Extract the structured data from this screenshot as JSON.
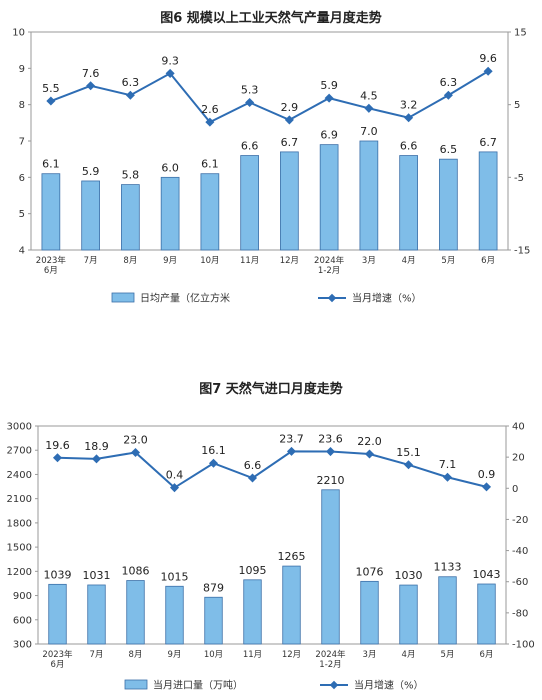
{
  "chart_data": [
    {
      "type": "bar",
      "title": "图6  规模以上工业天然气产量月度走势",
      "categories": [
        [
          "2023年",
          "6月"
        ],
        [
          "7月"
        ],
        [
          "8月"
        ],
        [
          "9月"
        ],
        [
          "10月"
        ],
        [
          "11月"
        ],
        [
          "12月"
        ],
        [
          "2024年",
          "1-2月"
        ],
        [
          "3月"
        ],
        [
          "4月"
        ],
        [
          "5月"
        ],
        [
          "6月"
        ]
      ],
      "series": [
        {
          "name": "日均产量（亿立方米",
          "kind": "bar",
          "axis": "left",
          "values": [
            6.1,
            5.9,
            5.8,
            6.0,
            6.1,
            6.6,
            6.7,
            6.9,
            7.0,
            6.6,
            6.5,
            6.7
          ],
          "color": "#7fbde8"
        },
        {
          "name": "当月增速（%）",
          "kind": "line",
          "axis": "right",
          "values": [
            5.5,
            7.6,
            6.3,
            9.3,
            2.6,
            5.3,
            2.9,
            5.9,
            4.5,
            3.2,
            6.3,
            9.6
          ],
          "color": "#2e6db4"
        }
      ],
      "y_left": {
        "min": 4,
        "max": 10,
        "ticks": [
          4,
          5,
          6,
          7,
          8,
          9,
          10
        ]
      },
      "y_right": {
        "min": -15,
        "max": 15,
        "ticks": [
          -15,
          -5,
          5,
          15
        ]
      },
      "grid": false,
      "legend": "bottom"
    },
    {
      "type": "bar",
      "title": "图7  天然气进口月度走势",
      "categories": [
        [
          "2023年",
          "6月"
        ],
        [
          "7月"
        ],
        [
          "8月"
        ],
        [
          "9月"
        ],
        [
          "10月"
        ],
        [
          "11月"
        ],
        [
          "12月"
        ],
        [
          "2024年",
          "1-2月"
        ],
        [
          "3月"
        ],
        [
          "4月"
        ],
        [
          "5月"
        ],
        [
          "6月"
        ]
      ],
      "series": [
        {
          "name": "当月进口量（万吨）",
          "kind": "bar",
          "axis": "left",
          "values": [
            1039,
            1031,
            1086,
            1015,
            879,
            1095,
            1265,
            2210,
            1076,
            1030,
            1133,
            1043
          ],
          "color": "#7fbde8"
        },
        {
          "name": "当月增速（%）",
          "kind": "line",
          "axis": "right",
          "values": [
            19.6,
            18.9,
            23.0,
            0.4,
            16.1,
            6.6,
            23.7,
            23.6,
            22.0,
            15.1,
            7.1,
            0.9
          ],
          "color": "#2e6db4"
        }
      ],
      "y_left": {
        "min": 300,
        "max": 3000,
        "ticks": [
          300,
          600,
          900,
          1200,
          1500,
          1800,
          2100,
          2400,
          2700,
          3000
        ]
      },
      "y_right": {
        "min": -100,
        "max": 40,
        "ticks": [
          -100,
          -80,
          -60,
          -40,
          -20,
          0,
          20,
          40
        ]
      },
      "grid": false,
      "legend": "bottom"
    }
  ]
}
